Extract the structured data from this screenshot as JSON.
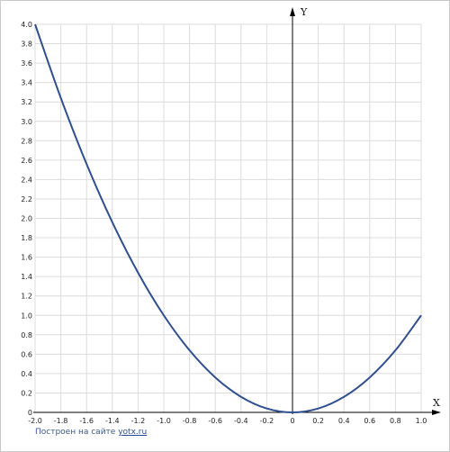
{
  "chart_data": {
    "type": "line",
    "title": "",
    "xlabel": "X",
    "ylabel": "Y",
    "xlim": [
      -2.0,
      1.0
    ],
    "ylim": [
      0,
      4.0
    ],
    "grid": true,
    "x_ticks": [
      "-2.0",
      "-1.8",
      "-1.6",
      "-1.4",
      "-1.2",
      "-1.0",
      "-0.8",
      "-0.6",
      "-0.4",
      "-0.2",
      "0",
      "0.2",
      "0.4",
      "0.6",
      "0.8",
      "1.0"
    ],
    "y_ticks": [
      "0",
      "0.2",
      "0.4",
      "0.6",
      "0.8",
      "1.0",
      "1.2",
      "1.4",
      "1.6",
      "1.8",
      "2.0",
      "2.2",
      "2.4",
      "2.6",
      "2.8",
      "3.0",
      "3.2",
      "3.4",
      "3.6",
      "3.8",
      "4.0"
    ],
    "series": [
      {
        "x": [
          -2.0,
          -1.8,
          -1.6,
          -1.4,
          -1.2,
          -1.0,
          -0.8,
          -0.6,
          -0.4,
          -0.2,
          0,
          0.2,
          0.4,
          0.6,
          0.8,
          1.0
        ],
        "values": [
          4.0,
          3.24,
          2.56,
          1.96,
          1.44,
          1.0,
          0.64,
          0.36,
          0.16,
          0.04,
          0,
          0.04,
          0.16,
          0.36,
          0.64,
          1.0
        ],
        "color": "#2f4f8f"
      }
    ]
  },
  "footer": {
    "credit_text": "Построен на сайте",
    "credit_link": "yotx.ru"
  }
}
